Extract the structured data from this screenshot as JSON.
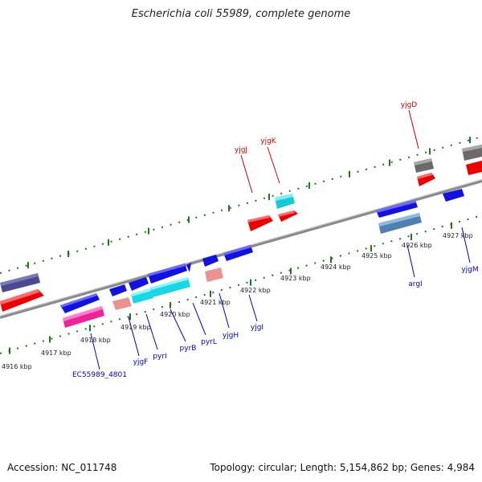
{
  "title": "Escherichia coli 55989, complete genome",
  "footer": {
    "accession": "Accession: NC_011748",
    "summary": "Topology: circular; Length: 5,154,862 bp; Genes: 4,984"
  },
  "scale_labels": [
    "4916 kbp",
    "4917 kbp",
    "4918 kbp",
    "4919 kbp",
    "4920 kbp",
    "4921 kbp",
    "4922 kbp",
    "4923 kbp",
    "4924 kbp",
    "4925 kbp",
    "4926 kbp",
    "4927 kbp"
  ],
  "gene_labels_upper": [
    "yjgJ",
    "yjgK",
    "yjgD"
  ],
  "gene_labels_lower": [
    "EC55989_4801",
    "yjgF",
    "pyrI",
    "pyrB",
    "pyrL",
    "yjgH",
    "yjgI",
    "argI",
    "yjgM"
  ],
  "colors": {
    "upper_label": "#cc0000",
    "lower_label": "#0000cc",
    "backbone": "#8a8a8a",
    "ticks": "#1a7a1a",
    "blue": "#1212e0",
    "red": "#ee0000",
    "cyan": "#18d8e8",
    "pink": "#ee9090",
    "magenta": "#ee2299",
    "navy": "#4a4a90",
    "steel": "#5080b0",
    "grey": "#6a6a6a"
  }
}
